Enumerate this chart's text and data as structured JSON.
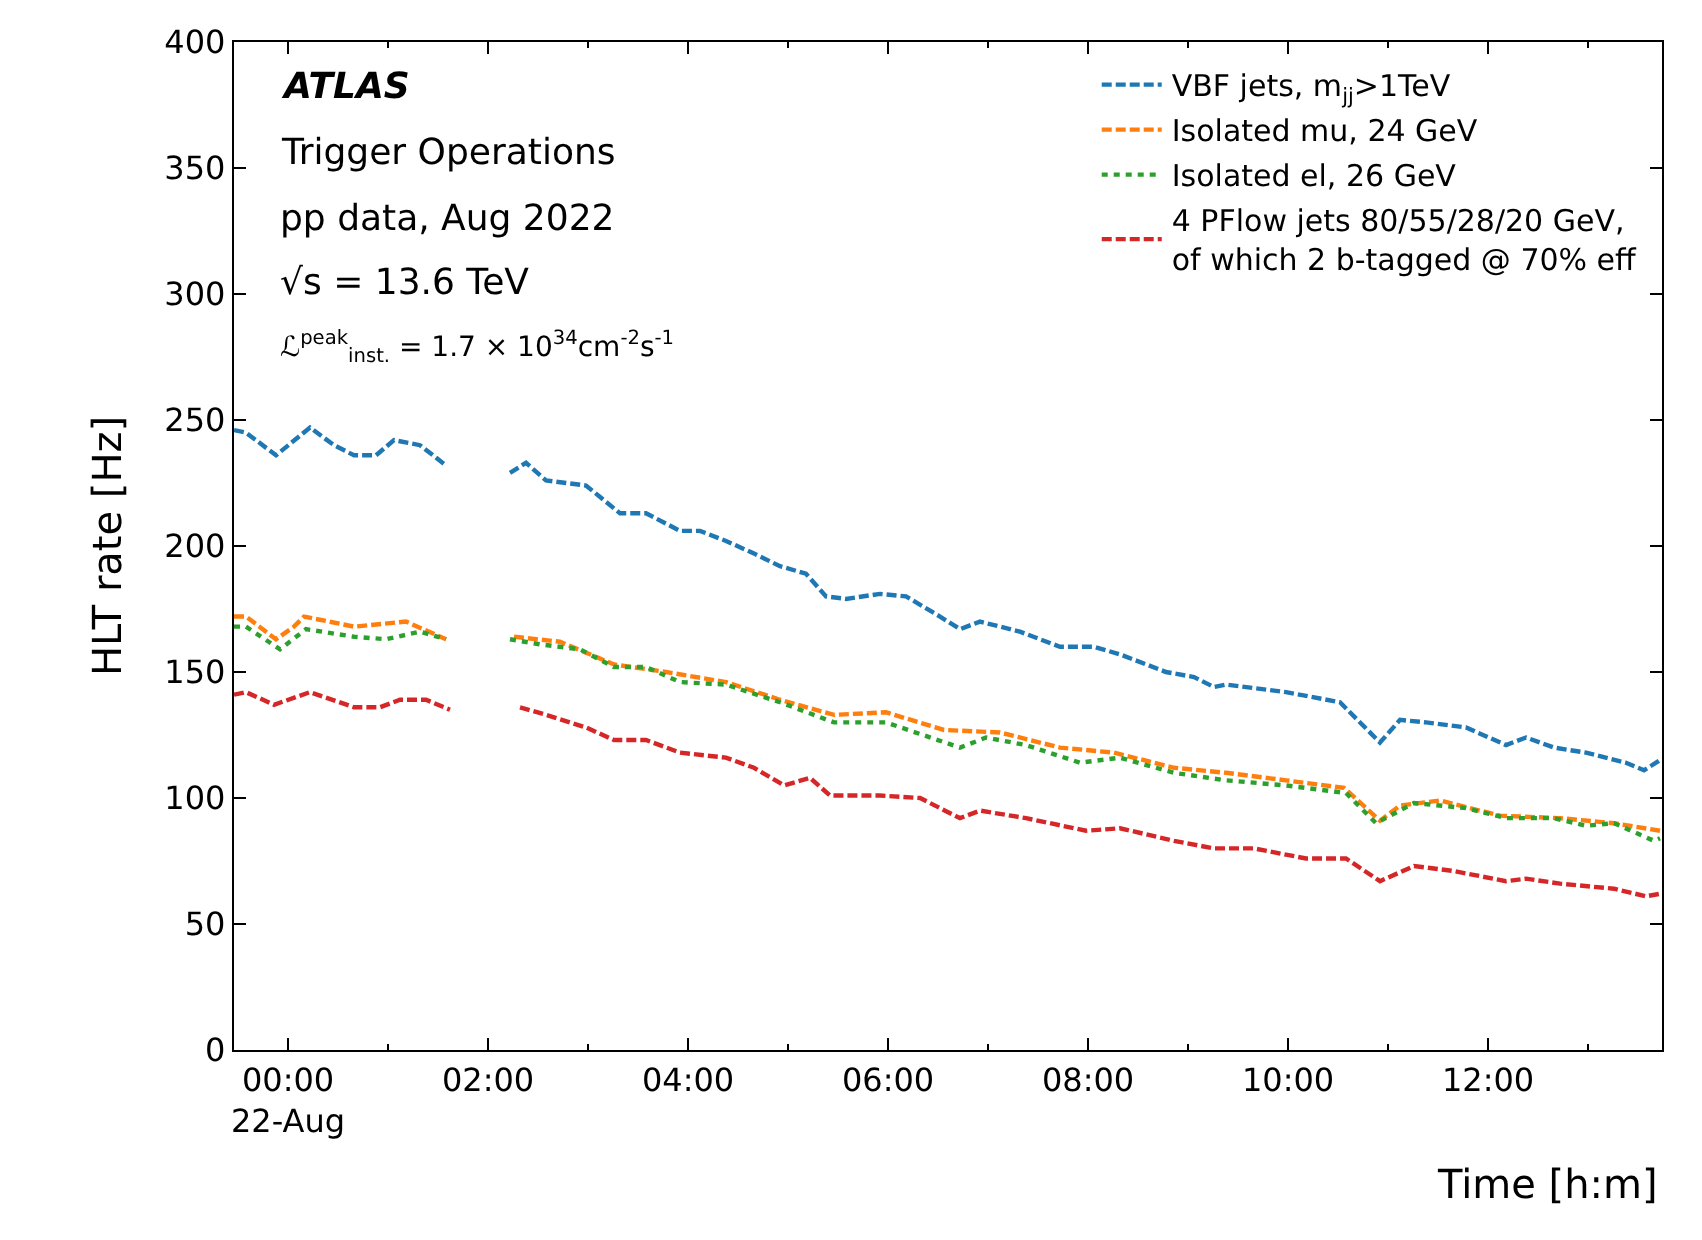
{
  "chart_data": {
    "type": "line",
    "xlabel": "Time [h:m]",
    "ylabel": "HLT rate [Hz]",
    "annotations": [
      "ATLAS",
      "Trigger Operations",
      "pp data, Aug 2022",
      "√s = 13.6 TeV",
      "ℒ$^{peak}$$_{inst.}$ = 1.7 × 10$^{34}$cm$^{-2}$s$^{-1}$"
    ],
    "xlim": [
      -0.54,
      13.74
    ],
    "ylim": [
      0,
      400
    ],
    "xticks": [
      {
        "value": 0,
        "label": "00:00\n22-Aug"
      },
      {
        "value": 2,
        "label": "02:00"
      },
      {
        "value": 4,
        "label": "04:00"
      },
      {
        "value": 6,
        "label": "06:00"
      },
      {
        "value": 8,
        "label": "08:00"
      },
      {
        "value": 10,
        "label": "10:00"
      },
      {
        "value": 12,
        "label": "12:00"
      }
    ],
    "yticks": [
      0,
      50,
      100,
      150,
      200,
      250,
      300,
      350,
      400
    ],
    "legend": "top right",
    "marker": "none",
    "series": [
      {
        "name": "VBF jets, m$_{jj}$>1TeV",
        "color": "#1f77b4",
        "line_style": "dashed",
        "x": [
          -0.54,
          -0.42,
          -0.12,
          0.22,
          0.46,
          0.66,
          0.88,
          1.06,
          1.32,
          1.58,
          1.94,
          2.22,
          2.38,
          2.58,
          2.98,
          3.32,
          3.58,
          3.92,
          4.12,
          4.38,
          4.66,
          4.92,
          5.18,
          5.38,
          5.58,
          5.92,
          6.18,
          6.52,
          6.72,
          6.92,
          7.32,
          7.72,
          8.06,
          8.32,
          8.78,
          9.06,
          9.26,
          9.38,
          9.98,
          10.52,
          10.92,
          11.12,
          11.38,
          11.78,
          12.18,
          12.38,
          12.66,
          12.98,
          13.38,
          13.56,
          13.72
        ],
        "values": [
          246,
          245,
          236,
          247,
          240,
          236,
          236,
          242,
          240,
          232,
          null,
          229,
          233,
          226,
          224,
          213,
          213,
          206,
          206,
          202,
          197,
          192,
          189,
          180,
          179,
          181,
          180,
          172,
          167,
          170,
          166,
          160,
          160,
          157,
          150,
          148,
          144,
          145,
          142,
          138,
          122,
          131,
          130,
          128,
          121,
          124,
          120,
          118,
          114,
          111,
          115
        ]
      },
      {
        "name": "Isolated mu, 24 GeV",
        "color": "#ff7f0e",
        "line_style": "dashed",
        "x": [
          -0.54,
          -0.42,
          -0.12,
          0.06,
          0.16,
          0.66,
          1.18,
          1.58,
          1.94,
          2.26,
          2.72,
          3.26,
          3.78,
          4.38,
          4.92,
          5.46,
          5.98,
          6.56,
          7.12,
          7.72,
          8.26,
          8.86,
          9.38,
          9.98,
          10.56,
          10.92,
          11.12,
          11.52,
          12.12,
          12.72,
          13.26,
          13.72
        ],
        "values": [
          172,
          172,
          163,
          168,
          172,
          168,
          170,
          163,
          null,
          164,
          162,
          153,
          150,
          146,
          139,
          133,
          134,
          127,
          126,
          120,
          118,
          112,
          110,
          107,
          104,
          91,
          97,
          99,
          93,
          92,
          90,
          87
        ]
      },
      {
        "name": "Isolated el, 26 GeV",
        "color": "#2ca02c",
        "line_style": "dotted",
        "x": [
          -0.54,
          -0.42,
          -0.08,
          0.18,
          0.66,
          0.98,
          1.32,
          1.58,
          1.94,
          2.22,
          2.52,
          2.92,
          3.26,
          3.58,
          3.92,
          4.38,
          4.92,
          5.46,
          5.98,
          6.72,
          6.98,
          7.38,
          7.92,
          8.32,
          8.86,
          9.38,
          9.98,
          10.58,
          10.88,
          11.26,
          11.78,
          12.18,
          12.66,
          12.98,
          13.26,
          13.66,
          13.72
        ],
        "values": [
          168,
          168,
          159,
          167,
          164,
          163,
          166,
          163,
          null,
          163,
          161,
          159,
          152,
          152,
          146,
          145,
          138,
          130,
          130,
          120,
          124,
          121,
          114,
          116,
          110,
          107,
          105,
          102,
          90,
          98,
          96,
          92,
          92,
          89,
          90,
          83,
          84
        ]
      },
      {
        "name": "4 PFlow jets 80/55/28/20 GeV,\nof which 2 b-tagged @ 70% eff",
        "color": "#d62728",
        "line_style": "dashed",
        "x": [
          -0.54,
          -0.42,
          -0.14,
          0.22,
          0.66,
          0.92,
          1.12,
          1.38,
          1.62,
          1.94,
          2.32,
          2.58,
          2.98,
          3.26,
          3.58,
          3.92,
          4.38,
          4.66,
          4.96,
          5.22,
          5.42,
          5.92,
          6.32,
          6.72,
          6.92,
          7.38,
          7.98,
          8.32,
          8.86,
          9.26,
          9.66,
          10.18,
          10.58,
          10.92,
          11.26,
          11.66,
          12.18,
          12.38,
          12.72,
          13.26,
          13.58,
          13.72
        ],
        "values": [
          141,
          142,
          137,
          142,
          136,
          136,
          139,
          139,
          135,
          null,
          136,
          133,
          128,
          123,
          123,
          118,
          116,
          112,
          105,
          108,
          101,
          101,
          100,
          92,
          95,
          92,
          87,
          88,
          83,
          80,
          80,
          76,
          76,
          67,
          73,
          71,
          67,
          68,
          66,
          64,
          61,
          62
        ]
      }
    ]
  }
}
